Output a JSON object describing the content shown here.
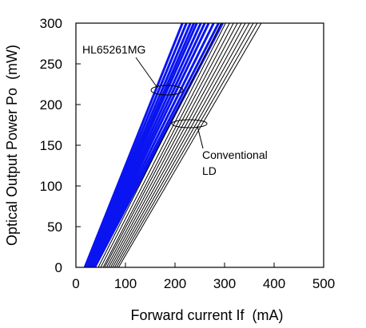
{
  "chart_data": {
    "type": "line",
    "title": "",
    "xlabel": "Forward current If  (mA)",
    "ylabel": "Optical Output Power Po  (mW)",
    "xlim": [
      0,
      500
    ],
    "ylim": [
      0,
      300
    ],
    "xticks": [
      0,
      100,
      200,
      300,
      400,
      500
    ],
    "yticks": [
      0,
      50,
      100,
      150,
      200,
      250,
      300
    ],
    "grid": false,
    "series": [
      {
        "name": "HL65261MG",
        "color": "#0a14f0",
        "lines": [
          {
            "x": [
              18,
              215
            ],
            "y": [
              0,
              300
            ]
          },
          {
            "x": [
              20,
              223
            ],
            "y": [
              0,
              300
            ]
          },
          {
            "x": [
              22,
              231
            ],
            "y": [
              0,
              300
            ]
          },
          {
            "x": [
              24,
              238
            ],
            "y": [
              0,
              300
            ]
          },
          {
            "x": [
              26,
              244
            ],
            "y": [
              0,
              300
            ]
          },
          {
            "x": [
              28,
              252
            ],
            "y": [
              0,
              300
            ]
          },
          {
            "x": [
              30,
              260
            ],
            "y": [
              0,
              300
            ]
          },
          {
            "x": [
              32,
              268
            ],
            "y": [
              0,
              300
            ]
          },
          {
            "x": [
              34,
              278
            ],
            "y": [
              0,
              300
            ]
          },
          {
            "x": [
              36,
              288
            ],
            "y": [
              0,
              300
            ]
          },
          {
            "x": [
              38,
              296
            ],
            "y": [
              0,
              300
            ]
          }
        ]
      },
      {
        "name": "Conventional LD",
        "color": "#000000",
        "lines": [
          {
            "x": [
              45,
              293
            ],
            "y": [
              0,
              300
            ]
          },
          {
            "x": [
              50,
              302
            ],
            "y": [
              0,
              300
            ]
          },
          {
            "x": [
              55,
              310
            ],
            "y": [
              0,
              300
            ]
          },
          {
            "x": [
              58,
              318
            ],
            "y": [
              0,
              300
            ]
          },
          {
            "x": [
              62,
              326
            ],
            "y": [
              0,
              300
            ]
          },
          {
            "x": [
              66,
              334
            ],
            "y": [
              0,
              300
            ]
          },
          {
            "x": [
              70,
              342
            ],
            "y": [
              0,
              300
            ]
          },
          {
            "x": [
              74,
              350
            ],
            "y": [
              0,
              300
            ]
          },
          {
            "x": [
              78,
              358
            ],
            "y": [
              0,
              300
            ]
          },
          {
            "x": [
              82,
              366
            ],
            "y": [
              0,
              300
            ]
          },
          {
            "x": [
              86,
              374
            ],
            "y": [
              0,
              300
            ]
          }
        ]
      }
    ],
    "annotations": [
      {
        "text": "HL65261MG",
        "series": "HL65261MG"
      },
      {
        "text": "Conventional",
        "series": "Conventional LD"
      },
      {
        "text": "LD",
        "series": "Conventional LD"
      }
    ]
  }
}
